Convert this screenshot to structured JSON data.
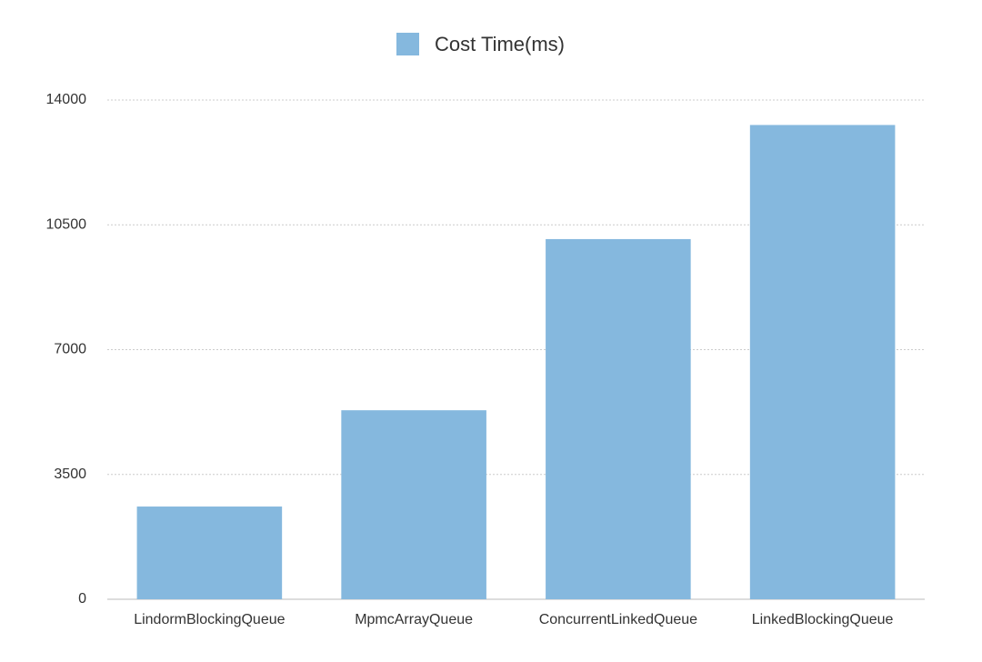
{
  "chart_data": {
    "type": "bar",
    "categories": [
      "LindormBlockingQueue",
      "MpmcArrayQueue",
      "ConcurrentLinkedQueue",
      "LinkedBlockingQueue"
    ],
    "series": [
      {
        "name": "Cost Time(ms)",
        "color": "#85b8de",
        "values": [
          2600,
          5300,
          10100,
          13300
        ]
      }
    ],
    "ylim": [
      0,
      14000
    ],
    "yticks": [
      0,
      3500,
      7000,
      10500,
      14000
    ],
    "grid": true,
    "legend": "top"
  }
}
